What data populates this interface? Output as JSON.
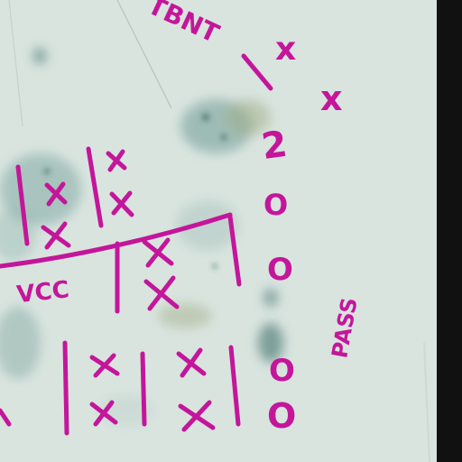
{
  "image": {
    "subject": "handwritten tally grid in magenta marker on stained paper",
    "colors": {
      "paper": "#dfe8e4",
      "ink": "#c4169a",
      "stain_teal": "#6f9b96",
      "stain_dark": "#3f6f6a",
      "stain_olive": "#9fae86",
      "edge": "#111111"
    }
  },
  "writing": {
    "top_label": "TBNT",
    "top_mark_1": "x",
    "top_mark_2": "x",
    "pass_count": "2",
    "row_label": "VCC",
    "zero_1": "O",
    "zero_2": "O",
    "zero_3": "O",
    "zero_4": "O",
    "side_label": "PASS"
  }
}
